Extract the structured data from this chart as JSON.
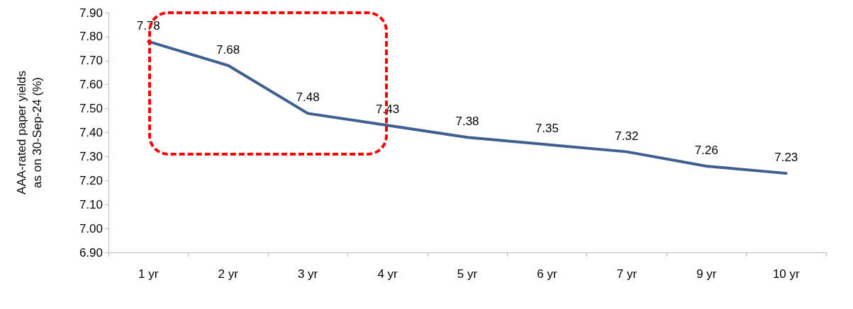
{
  "chart_data": {
    "type": "line",
    "ylabel": "AAA-rated paper yields\nas on 30-Sep-24 (%)",
    "categories": [
      "1 yr",
      "2 yr",
      "3 yr",
      "4 yr",
      "5 yr",
      "6 yr",
      "7 yr",
      "9 yr",
      "10 yr"
    ],
    "series": [
      {
        "color": "#3e5f8f",
        "values": [
          7.78,
          7.68,
          7.48,
          7.43,
          7.38,
          7.35,
          7.32,
          7.26,
          7.23
        ]
      }
    ],
    "ylim": [
      6.9,
      7.9
    ],
    "yticks": [
      {
        "value": 6.9,
        "label": "6.90"
      },
      {
        "value": 7.0,
        "label": "7.00"
      },
      {
        "value": 7.1,
        "label": "7.10"
      },
      {
        "value": 7.2,
        "label": "7.20"
      },
      {
        "value": 7.3,
        "label": "7.30"
      },
      {
        "value": 7.4,
        "label": "7.40"
      },
      {
        "value": 7.5,
        "label": "7.50"
      },
      {
        "value": 7.6,
        "label": "7.60"
      },
      {
        "value": 7.7,
        "label": "7.70"
      },
      {
        "value": 7.8,
        "label": "7.80"
      },
      {
        "value": 7.9,
        "label": "7.90"
      }
    ],
    "data_labels": true,
    "grid": false,
    "marker": "none",
    "line_style": "solid"
  }
}
